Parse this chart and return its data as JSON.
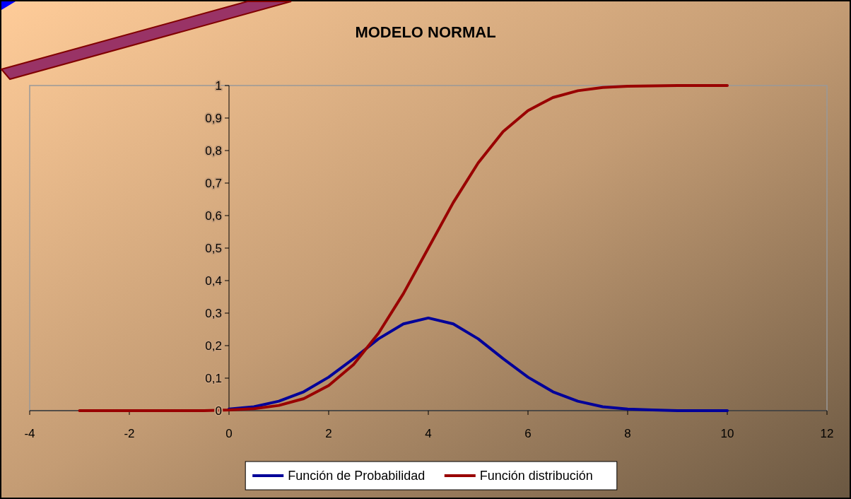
{
  "chart_data": {
    "type": "line",
    "title": "MODELO NORMAL",
    "x": [
      -3,
      -2.5,
      -2,
      -1.5,
      -1,
      -0.5,
      0,
      0.5,
      1,
      1.5,
      2,
      2.5,
      3,
      3.5,
      4,
      4.5,
      5,
      5.5,
      6,
      6.5,
      7,
      7.5,
      8,
      8.5,
      9,
      9.5,
      10
    ],
    "series": [
      {
        "name": "Función de Probabilidad",
        "color": "#000099",
        "values": [
          null,
          null,
          null,
          null,
          null,
          null,
          0.005,
          0.012,
          0.029,
          0.058,
          0.103,
          0.16,
          0.221,
          0.267,
          0.285,
          0.267,
          0.221,
          0.16,
          0.103,
          0.058,
          0.029,
          0.012,
          0.005,
          0.002,
          0,
          0,
          0
        ]
      },
      {
        "name": "Función distribución",
        "color": "#990000",
        "values": [
          0,
          0,
          0,
          0,
          0,
          0,
          0.002,
          0.006,
          0.016,
          0.037,
          0.077,
          0.142,
          0.238,
          0.36,
          0.5,
          0.64,
          0.762,
          0.858,
          0.923,
          0.963,
          0.984,
          0.994,
          0.998,
          0.999,
          1,
          1,
          1
        ]
      }
    ],
    "xlim": [
      -4,
      12
    ],
    "xticks": [
      -4,
      -2,
      0,
      2,
      4,
      6,
      8,
      10,
      12
    ],
    "ylim": [
      0,
      1
    ],
    "yticks": [
      0,
      {
        "value": 0.1,
        "label": "0,1"
      },
      {
        "value": 0.2,
        "label": "0,2"
      },
      {
        "value": 0.3,
        "label": "0,3"
      },
      {
        "value": 0.4,
        "label": "0,4"
      },
      {
        "value": 0.5,
        "label": "0,5"
      },
      {
        "value": 0.6,
        "label": "0,6"
      },
      {
        "value": 0.7,
        "label": "0,7"
      },
      {
        "value": 0.8,
        "label": "0,8"
      },
      {
        "value": 0.9,
        "label": "0,9"
      },
      1
    ],
    "grid": false,
    "legend": "bottom",
    "marker": "none",
    "line_style": "solid"
  }
}
